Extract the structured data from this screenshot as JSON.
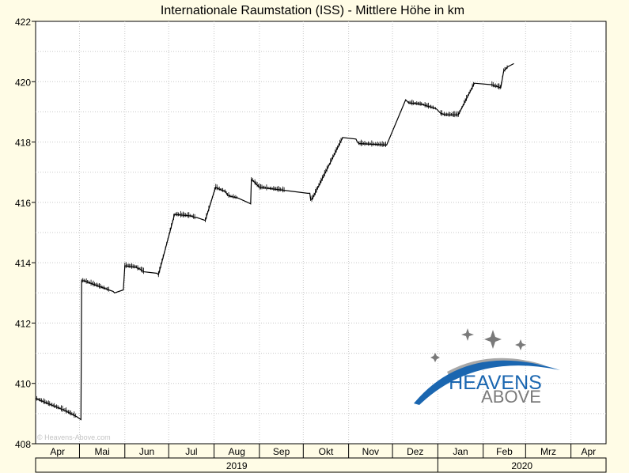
{
  "chart_data": {
    "type": "line",
    "title": "Internationale Raumstation (ISS) - Mittlere Höhe in km",
    "xlabel": "",
    "ylabel": "",
    "ylim": [
      408,
      422
    ],
    "y_ticks": [
      408,
      410,
      412,
      414,
      416,
      418,
      420,
      422
    ],
    "x_range_day": [
      0,
      390
    ],
    "grid": true,
    "months": [
      {
        "label": "Apr",
        "start": 0
      },
      {
        "label": "Mai",
        "start": 30
      },
      {
        "label": "Jun",
        "start": 61
      },
      {
        "label": "Jul",
        "start": 91
      },
      {
        "label": "Aug",
        "start": 122
      },
      {
        "label": "Sep",
        "start": 153
      },
      {
        "label": "Okt",
        "start": 183
      },
      {
        "label": "Nov",
        "start": 214
      },
      {
        "label": "Dez",
        "start": 244
      },
      {
        "label": "Jan",
        "start": 275
      },
      {
        "label": "Feb",
        "start": 306
      },
      {
        "label": "Mrz",
        "start": 335
      },
      {
        "label": "Apr",
        "start": 366
      }
    ],
    "years": [
      {
        "label": "2019",
        "start": 0,
        "end": 275
      },
      {
        "label": "2020",
        "start": 275,
        "end": 390
      }
    ],
    "series": [
      {
        "name": "",
        "color": "#000000",
        "x": [
          0,
          10,
          20,
          28,
          31,
          31.5,
          33,
          50,
          53,
          54,
          60,
          61,
          69,
          70,
          71,
          74,
          83,
          84,
          95,
          106,
          109,
          110,
          113,
          116,
          123,
          125,
          130,
          130.5,
          131,
          133,
          138,
          145,
          147,
          147.5,
          148,
          153,
          170,
          186,
          187.5,
          188,
          189,
          210,
          219,
          220,
          221,
          240,
          253,
          254,
          255,
          264,
          274,
          275,
          276,
          277,
          280,
          289,
          300,
          312,
          314,
          315,
          318,
          320,
          323,
          327
        ],
        "y": [
          409.5,
          409.3,
          409.1,
          408.9,
          408.8,
          413.4,
          413.4,
          413.1,
          413.05,
          413.0,
          413.1,
          413.9,
          413.85,
          413.8,
          413.8,
          413.7,
          413.65,
          413.6,
          415.6,
          415.55,
          415.5,
          415.5,
          415.45,
          415.4,
          416.5,
          416.45,
          416.35,
          416.3,
          416.25,
          416.2,
          416.15,
          416.0,
          415.95,
          416.75,
          416.75,
          416.5,
          416.4,
          416.3,
          416.3,
          416.1,
          416.1,
          418.15,
          418.1,
          418.0,
          417.95,
          417.9,
          419.4,
          419.35,
          419.3,
          419.25,
          419.1,
          419.05,
          419.0,
          418.95,
          418.9,
          418.9,
          419.95,
          419.9,
          419.85,
          419.85,
          419.8,
          420.35,
          420.5,
          420.6
        ]
      }
    ],
    "segments": [
      [
        0,
        28
      ],
      [
        31.5,
        50
      ],
      [
        61,
        74
      ],
      [
        84,
        109
      ],
      [
        116,
        138
      ],
      [
        147.5,
        170
      ],
      [
        188,
        210
      ],
      [
        221,
        240
      ],
      [
        255,
        274
      ],
      [
        277,
        300
      ],
      [
        312,
        323
      ]
    ]
  },
  "watermark": {
    "brand_line1": "HEAVENS",
    "brand_line2": "ABOVE",
    "copyright": "© Heavens-Above.com",
    "colors": {
      "blue": "#1a66b0",
      "gray": "#7a7a7a"
    }
  },
  "style": {
    "background": "#fffce6",
    "plot_background": "#ffffff",
    "grid_color": "#c8c8c8",
    "line_color": "#000000"
  }
}
